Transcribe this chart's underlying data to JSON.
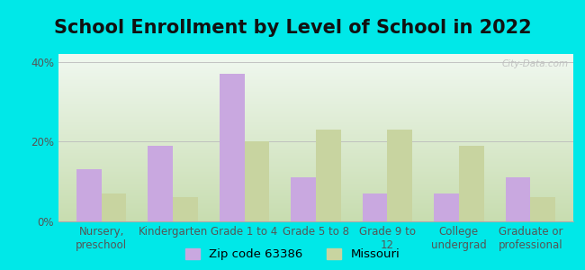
{
  "title": "School Enrollment by Level of School in 2022",
  "categories": [
    "Nursery,\npreschool",
    "Kindergarten",
    "Grade 1 to 4",
    "Grade 5 to 8",
    "Grade 9 to\n12",
    "College\nundergrad",
    "Graduate or\nprofessional"
  ],
  "zip_values": [
    13,
    19,
    37,
    11,
    7,
    7,
    11
  ],
  "mo_values": [
    7,
    6,
    20,
    23,
    23,
    19,
    6
  ],
  "zip_color": "#c9a8e0",
  "mo_color": "#c8d4a0",
  "background_outer": "#00e8e8",
  "gradient_bottom": "#c8ddb0",
  "gradient_top": "#f0f8f0",
  "ylim": [
    0,
    42
  ],
  "yticks": [
    0,
    20,
    40
  ],
  "ytick_labels": [
    "0%",
    "20%",
    "40%"
  ],
  "legend_zip": "Zip code 63386",
  "legend_mo": "Missouri",
  "title_fontsize": 15,
  "tick_fontsize": 8.5,
  "legend_fontsize": 9.5,
  "watermark": "City-Data.com"
}
